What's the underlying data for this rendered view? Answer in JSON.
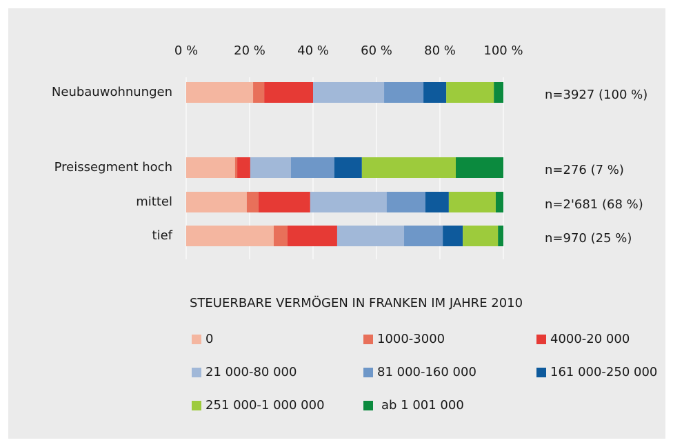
{
  "chart_data": {
    "type": "stacked_barh",
    "categories": [
      "Neubauwohnungen",
      "Preissegment hoch",
      "mittel",
      "tief"
    ],
    "annotations": [
      "n=3927 (100 %)",
      "n=276 (7 %)",
      "n=2'681 (68 %)",
      "n=970 (25 %)"
    ],
    "legend_title": "STEUERBARE VERMÖGEN IN FRANKEN IM JAHRE 2010",
    "xlim": [
      0,
      100
    ],
    "xticks": [
      {
        "value": 0,
        "label": "0 %"
      },
      {
        "value": 20,
        "label": "20 %"
      },
      {
        "value": 40,
        "label": "40 %"
      },
      {
        "value": 60,
        "label": "60 %"
      },
      {
        "value": 80,
        "label": "80 %"
      },
      {
        "value": 100,
        "label": "100 %"
      }
    ],
    "grid": true,
    "series": [
      {
        "name": "0",
        "color": "#f4b6a0",
        "values": [
          21.1,
          15.4,
          19.1,
          27.6
        ]
      },
      {
        "name": "1000-3000",
        "color": "#e8705a",
        "values": [
          3.5,
          0.7,
          3.7,
          4.3
        ]
      },
      {
        "name": "4000-20 000",
        "color": "#e63a35",
        "values": [
          15.4,
          4.1,
          16.3,
          15.7
        ]
      },
      {
        "name": "21 000-80 000",
        "color": "#a1b8d8",
        "values": [
          22.4,
          12.8,
          24.1,
          21.1
        ]
      },
      {
        "name": "81 000-160 000",
        "color": "#6e97c8",
        "values": [
          12.4,
          13.7,
          12.2,
          12.2
        ]
      },
      {
        "name": "161 000-250 000",
        "color": "#0e5a9c",
        "values": [
          7.2,
          8.7,
          7.4,
          6.3
        ]
      },
      {
        "name": "251 000-1 000 000",
        "color": "#9dcb3c",
        "values": [
          15.0,
          29.6,
          14.8,
          11.1
        ]
      },
      {
        "name": "ab 1 001 000",
        "color": "#0b8a3e",
        "values": [
          3.0,
          15.0,
          2.4,
          1.7
        ]
      }
    ]
  }
}
